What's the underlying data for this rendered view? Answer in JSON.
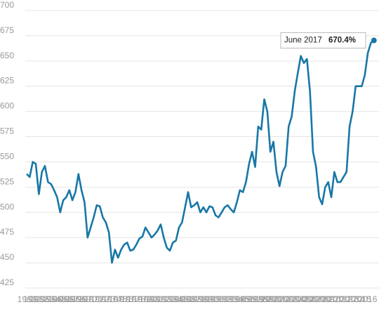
{
  "chart_data": {
    "type": "line",
    "x": [
      1960,
      1960.5,
      1961,
      1961.5,
      1962,
      1962.5,
      1963,
      1963.5,
      1964,
      1964.5,
      1965,
      1965.5,
      1966,
      1966.5,
      1967,
      1967.5,
      1968,
      1968.5,
      1969,
      1969.5,
      1970,
      1970.5,
      1971,
      1971.5,
      1972,
      1972.5,
      1973,
      1973.5,
      1974,
      1974.5,
      1975,
      1975.5,
      1976,
      1976.5,
      1977,
      1977.5,
      1978,
      1978.5,
      1979,
      1979.5,
      1980,
      1980.5,
      1981,
      1981.5,
      1982,
      1982.5,
      1983,
      1983.5,
      1984,
      1984.5,
      1985,
      1985.5,
      1986,
      1986.5,
      1987,
      1987.5,
      1988,
      1988.5,
      1989,
      1989.5,
      1990,
      1990.5,
      1991,
      1991.5,
      1992,
      1992.5,
      1993,
      1993.5,
      1994,
      1994.5,
      1995,
      1995.5,
      1996,
      1996.5,
      1997,
      1997.5,
      1998,
      1998.5,
      1999,
      1999.5,
      2000,
      2000.5,
      2001,
      2001.5,
      2002,
      2002.5,
      2003,
      2003.5,
      2004,
      2004.5,
      2005,
      2005.5,
      2006,
      2006.5,
      2007,
      2007.5,
      2008,
      2008.5,
      2009,
      2009.5,
      2010,
      2010.5,
      2011,
      2011.5,
      2012,
      2012.5,
      2013,
      2013.5,
      2014,
      2014.5,
      2015,
      2015.5,
      2016,
      2016.5,
      2017
    ],
    "series": [
      {
        "color": "#1877a6",
        "values": [
          538,
          535,
          550,
          548,
          518,
          540,
          546,
          530,
          528,
          522,
          515,
          500,
          512,
          515,
          522,
          512,
          520,
          538,
          522,
          510,
          475,
          485,
          495,
          507,
          506,
          495,
          490,
          480,
          450,
          463,
          455,
          463,
          468,
          470,
          462,
          463,
          468,
          474,
          476,
          485,
          480,
          475,
          478,
          482,
          488,
          475,
          465,
          462,
          470,
          472,
          485,
          490,
          505,
          520,
          505,
          507,
          510,
          500,
          505,
          500,
          506,
          505,
          497,
          495,
          500,
          505,
          507,
          503,
          500,
          510,
          522,
          520,
          530,
          548,
          560,
          545,
          585,
          582,
          612,
          600,
          560,
          570,
          540,
          526,
          540,
          546,
          585,
          595,
          620,
          638,
          655,
          648,
          652,
          620,
          560,
          545,
          515,
          508,
          525,
          530,
          515,
          540,
          530,
          530,
          535,
          540,
          585,
          600,
          625,
          625,
          625,
          636,
          658,
          668,
          670.4
        ]
      }
    ],
    "tooltip": {
      "date": "June 2017",
      "value_label": "670.4%"
    },
    "xlim": [
      1960,
      2017.6
    ],
    "xticks": [
      1960,
      1961,
      1962,
      1963,
      1964,
      1965,
      1966,
      1967,
      1968,
      1969,
      1970,
      1971,
      1972,
      1973,
      1974,
      1975,
      1976,
      1977,
      1978,
      1979,
      1980,
      1981,
      1982,
      1983,
      1984,
      1985,
      1986,
      1987,
      1988,
      1989,
      1990,
      1991,
      1992,
      1993,
      1994,
      1995,
      1996,
      1997,
      1998,
      1999,
      2000,
      2001,
      2002,
      2003,
      2004,
      2005,
      2006,
      2007,
      2008,
      2009,
      2010,
      2011,
      2012,
      2013,
      2014,
      2015,
      2016
    ],
    "ylim": [
      425,
      700
    ],
    "yticks": [
      425,
      450,
      475,
      500,
      525,
      550,
      575,
      600,
      625,
      650,
      675,
      700
    ],
    "grid": true
  }
}
